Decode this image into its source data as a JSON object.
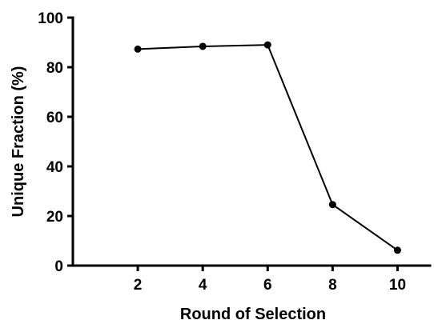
{
  "chart_data": {
    "type": "line",
    "title": "",
    "xlabel": "Round of Selection",
    "ylabel": "Unique Fraction (%)",
    "x": [
      2,
      4,
      6,
      8,
      10
    ],
    "series": [
      {
        "values": [
          87.3,
          88.4,
          89.0,
          24.6,
          6.2
        ]
      }
    ],
    "xticks": [
      2,
      4,
      6,
      8,
      10
    ],
    "yticks": [
      0,
      20,
      40,
      60,
      80,
      100
    ],
    "xlim": [
      0,
      11
    ],
    "ylim": [
      0,
      100
    ],
    "grid": false,
    "legend": "none",
    "color": "#000000"
  }
}
